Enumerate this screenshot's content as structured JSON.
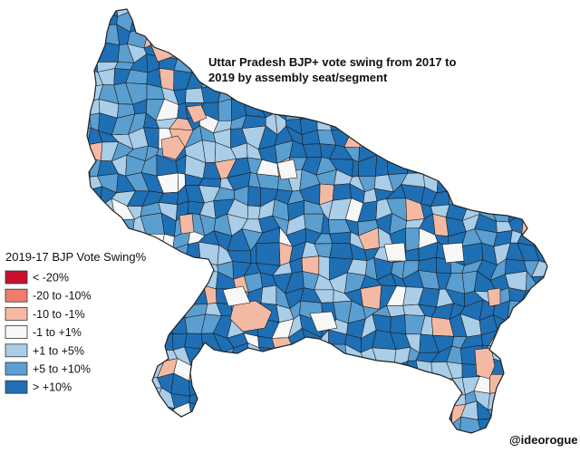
{
  "title": {
    "line1": "Uttar Pradesh BJP+ vote swing from 2017 to",
    "line2": "2019 by assembly seat/segment"
  },
  "legend": {
    "title": "2019-17 BJP Vote Swing%",
    "items": [
      {
        "label": "< -20%",
        "color": "#c8102e"
      },
      {
        "label": "-20 to -10%",
        "color": "#ef7d6b"
      },
      {
        "label": "-10 to -1%",
        "color": "#f4b9a2"
      },
      {
        "label": "-1 to +1%",
        "color": "#f7f7f7"
      },
      {
        "label": "+1 to +5%",
        "color": "#aacde8"
      },
      {
        "label": "+5 to +10%",
        "color": "#5b9ed0"
      },
      {
        "label": "> +10%",
        "color": "#1f6fb4"
      }
    ]
  },
  "credit": "@ideorogue"
}
